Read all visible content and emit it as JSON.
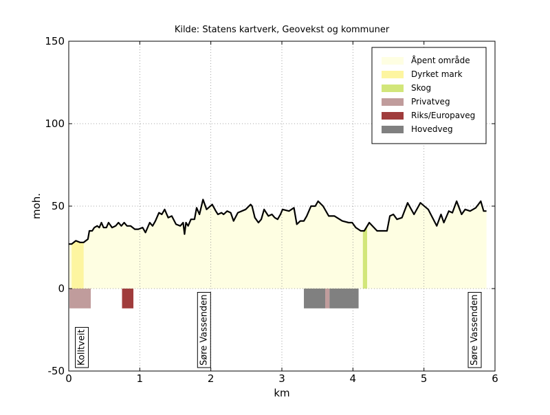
{
  "chart_data": {
    "type": "profile",
    "title": "Kilde: Statens kartverk, Geovekst og kommuner",
    "xlabel": "km",
    "ylabel": "moh.",
    "xlim": [
      0,
      6
    ],
    "ylim": [
      -50,
      150
    ],
    "xticks": [
      0,
      1,
      2,
      3,
      4,
      5,
      6
    ],
    "yticks": [
      -50,
      0,
      50,
      100,
      150
    ],
    "grid": true,
    "legend": "upper right",
    "profile": {
      "color": "#000000",
      "x": [
        0,
        0.04,
        0.1,
        0.16,
        0.21,
        0.27,
        0.29,
        0.33,
        0.36,
        0.4,
        0.43,
        0.46,
        0.49,
        0.53,
        0.56,
        0.61,
        0.66,
        0.7,
        0.74,
        0.78,
        0.82,
        0.87,
        0.93,
        0.98,
        1.04,
        1.08,
        1.14,
        1.18,
        1.22,
        1.27,
        1.31,
        1.35,
        1.4,
        1.45,
        1.51,
        1.57,
        1.61,
        1.63,
        1.65,
        1.68,
        1.72,
        1.77,
        1.8,
        1.84,
        1.89,
        1.94,
        2.02,
        2.07,
        2.1,
        2.15,
        2.18,
        2.23,
        2.28,
        2.32,
        2.38,
        2.49,
        2.56,
        2.58,
        2.62,
        2.67,
        2.71,
        2.75,
        2.81,
        2.86,
        2.9,
        2.94,
        2.98,
        3.01,
        3.1,
        3.17,
        3.21,
        3.26,
        3.31,
        3.35,
        3.41,
        3.47,
        3.51,
        3.58,
        3.66,
        3.74,
        3.85,
        3.94,
        3.99,
        4.04,
        4.11,
        4.16,
        4.23,
        4.34,
        4.48,
        4.52,
        4.57,
        4.62,
        4.69,
        4.77,
        4.86,
        4.95,
        5.06,
        5.18,
        5.24,
        5.28,
        5.35,
        5.4,
        5.46,
        5.53,
        5.58,
        5.65,
        5.73,
        5.8,
        5.84,
        5.88
      ],
      "values": [
        27,
        27,
        29,
        28,
        28,
        30,
        35,
        35,
        37,
        38,
        37,
        40,
        37,
        37,
        40,
        37,
        38,
        40,
        38,
        40,
        38,
        38,
        36,
        36,
        37,
        34,
        40,
        38,
        41,
        46,
        45,
        48,
        43,
        44,
        39,
        38,
        40,
        33,
        40,
        38,
        42,
        42,
        49,
        45,
        54,
        48,
        51,
        47,
        45,
        46,
        45,
        47,
        46,
        41,
        46,
        48,
        51,
        50,
        43,
        40,
        42,
        48,
        44,
        45,
        43,
        42,
        45,
        48,
        47,
        49,
        39,
        41,
        41,
        44,
        50,
        50,
        53,
        50,
        44,
        44,
        41,
        40,
        40,
        37,
        35,
        35,
        40,
        35,
        35,
        44,
        45,
        42,
        43,
        52,
        45,
        52,
        48,
        38,
        45,
        40,
        47,
        46,
        53,
        45,
        48,
        47,
        49,
        53,
        47,
        47
      ]
    },
    "series": [
      {
        "name": "Åpent område",
        "color": "#fefee2",
        "spans": [
          [
            0,
            0.04
          ],
          [
            0.21,
            4.14
          ],
          [
            4.2,
            5.88
          ]
        ]
      },
      {
        "name": "Dyrket mark",
        "color": "#fdf5a0",
        "spans": [
          [
            0.04,
            0.21
          ]
        ]
      },
      {
        "name": "Skog",
        "color": "#d2e67a",
        "spans": [
          [
            4.14,
            4.2
          ]
        ]
      },
      {
        "name": "Privatveg",
        "color": "#c09c9c",
        "range": [
          -12,
          0
        ],
        "spans": [
          [
            0.01,
            0.31
          ],
          [
            3.61,
            3.67
          ]
        ]
      },
      {
        "name": "Riks/Europaveg",
        "color": "#a03c3c",
        "range": [
          -12,
          0
        ],
        "spans": [
          [
            0.75,
            0.91
          ]
        ]
      },
      {
        "name": "Hovedveg",
        "color": "#808080",
        "range": [
          -12,
          0
        ],
        "spans": [
          [
            3.31,
            3.61
          ],
          [
            3.67,
            4.08
          ]
        ]
      }
    ],
    "places": [
      {
        "label": "Kolltveit",
        "x": 0.17
      },
      {
        "label": "Søre Vassenden",
        "x": 1.89
      },
      {
        "label": "Søre Vassenden",
        "x": 5.7
      }
    ]
  }
}
